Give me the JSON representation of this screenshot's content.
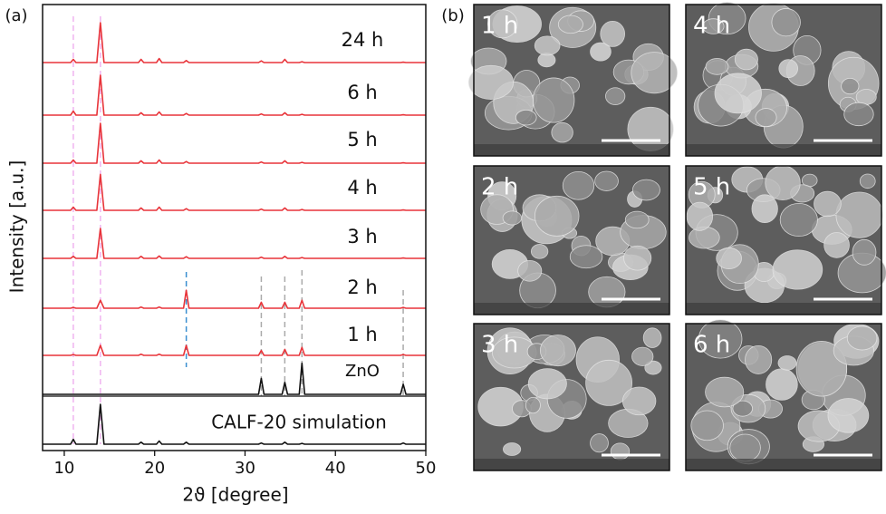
{
  "chart_data": {
    "type": "line",
    "panel_label": "(a)",
    "x_label": "2ϑ [degree]",
    "y_label": "Intensity [a.u.]",
    "xlim": [
      7.6,
      50
    ],
    "xticks": [
      10,
      20,
      30,
      40,
      50
    ],
    "x": [
      7.6,
      10.7,
      11,
      11.3,
      13.6,
      14,
      14.4,
      18.2,
      18.5,
      18.8,
      20.2,
      20.5,
      20.8,
      23.2,
      23.5,
      23.8,
      31.5,
      31.8,
      32.1,
      34.1,
      34.4,
      34.7,
      36,
      36.3,
      36.6,
      47.2,
      47.5,
      47.8,
      50
    ],
    "series": [
      {
        "name": "24 h",
        "color": "#e8343a",
        "values": [
          0,
          0,
          8,
          0,
          0,
          100,
          0,
          0,
          8,
          0,
          0,
          10,
          0,
          0,
          5,
          0,
          0,
          4,
          0,
          0,
          8,
          0,
          0,
          2,
          0,
          0,
          1,
          0,
          0
        ]
      },
      {
        "name": "6 h",
        "color": "#e8343a",
        "values": [
          0,
          0,
          10,
          0,
          0,
          100,
          0,
          0,
          6,
          0,
          0,
          8,
          0,
          0,
          4,
          0,
          0,
          3,
          0,
          0,
          6,
          0,
          0,
          2,
          0,
          0,
          1,
          0,
          0
        ]
      },
      {
        "name": "5 h",
        "color": "#e8343a",
        "values": [
          0,
          0,
          8,
          0,
          0,
          100,
          0,
          0,
          6,
          0,
          0,
          8,
          0,
          0,
          4,
          0,
          0,
          3,
          0,
          0,
          6,
          0,
          0,
          2,
          0,
          0,
          1,
          0,
          0
        ]
      },
      {
        "name": "4 h",
        "color": "#e8343a",
        "values": [
          0,
          0,
          8,
          0,
          0,
          90,
          0,
          0,
          6,
          0,
          0,
          8,
          0,
          0,
          4,
          0,
          0,
          3,
          0,
          0,
          6,
          0,
          0,
          2,
          0,
          0,
          1,
          0,
          0
        ]
      },
      {
        "name": "3 h",
        "color": "#e8343a",
        "values": [
          0,
          0,
          5,
          0,
          0,
          75,
          0,
          0,
          5,
          0,
          0,
          6,
          0,
          0,
          4,
          0,
          0,
          3,
          0,
          0,
          5,
          0,
          0,
          2,
          0,
          0,
          1,
          0,
          0
        ]
      },
      {
        "name": "2 h",
        "color": "#e8343a",
        "values": [
          0,
          0,
          2,
          0,
          0,
          20,
          0,
          0,
          3,
          0,
          0,
          3,
          0,
          0,
          45,
          0,
          0,
          15,
          0,
          0,
          15,
          0,
          0,
          20,
          0,
          0,
          2,
          0,
          0
        ]
      },
      {
        "name": "1 h",
        "color": "#e8343a",
        "values": [
          0,
          0,
          2,
          0,
          0,
          25,
          0,
          0,
          3,
          0,
          0,
          3,
          0,
          0,
          25,
          0,
          0,
          12,
          0,
          0,
          15,
          0,
          0,
          20,
          0,
          0,
          2,
          0,
          0
        ]
      },
      {
        "name": "ZnO",
        "color": "#111111",
        "values": [
          0,
          0,
          0,
          0,
          0,
          0,
          0,
          0,
          0,
          0,
          0,
          0,
          0,
          0,
          0,
          0,
          0,
          40,
          0,
          0,
          30,
          0,
          0,
          78,
          0,
          0,
          25,
          0,
          0
        ]
      },
      {
        "name": "CALF-20 simulation",
        "color": "#111111",
        "values": [
          0,
          0,
          12,
          0,
          0,
          100,
          0,
          0,
          5,
          0,
          0,
          8,
          0,
          0,
          5,
          0,
          0,
          3,
          0,
          0,
          5,
          0,
          0,
          2,
          0,
          0,
          3,
          0,
          0
        ]
      }
    ],
    "reference_lines": [
      {
        "x": 11,
        "color": "#f0b4f0"
      },
      {
        "x": 14,
        "color": "#f0b4f0"
      },
      {
        "x": 23.5,
        "color": "#3a8fd0"
      },
      {
        "x": 31.8,
        "color": "#aaaaaa"
      },
      {
        "x": 34.4,
        "color": "#aaaaaa"
      },
      {
        "x": 36.3,
        "color": "#aaaaaa"
      },
      {
        "x": 47.5,
        "color": "#aaaaaa"
      }
    ]
  },
  "panel_b": {
    "panel_label": "(b)",
    "images": [
      {
        "label": "1 h"
      },
      {
        "label": "4 h"
      },
      {
        "label": "2 h"
      },
      {
        "label": "5 h"
      },
      {
        "label": "3 h"
      },
      {
        "label": "6 h"
      }
    ]
  }
}
